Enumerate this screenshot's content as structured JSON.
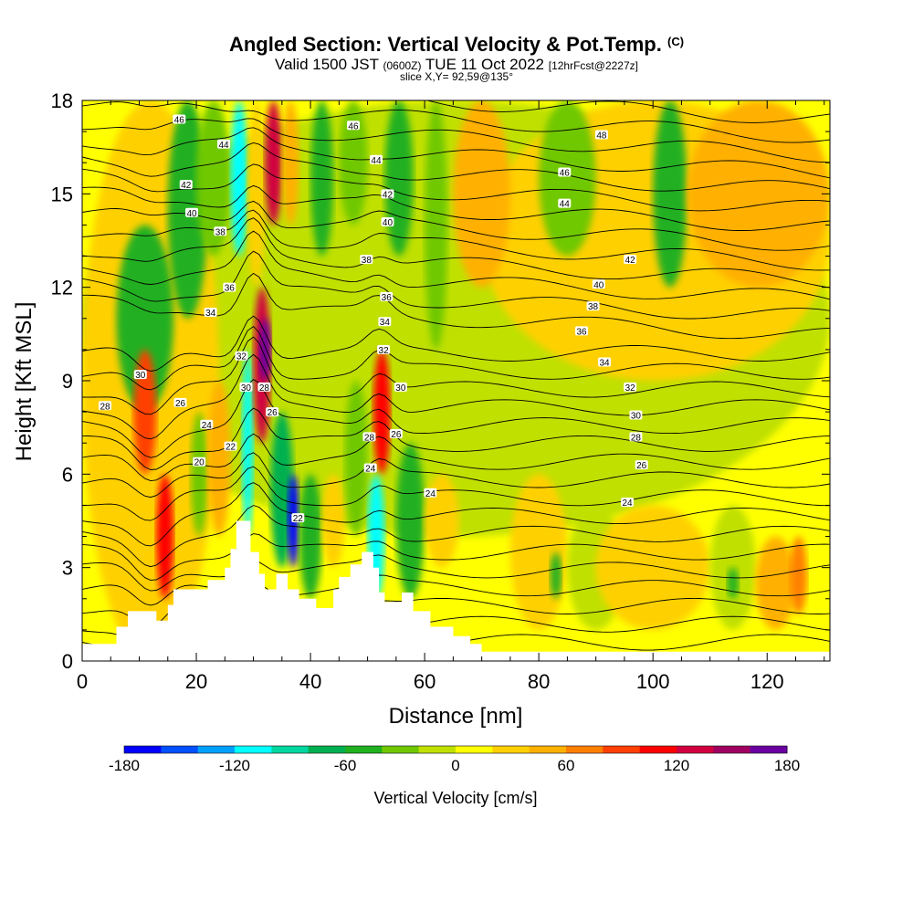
{
  "title": {
    "main": "Angled Section: Vertical Velocity & Pot.Temp.",
    "main_note": "(C)",
    "valid_a": "Valid 1500 JST",
    "valid_zulu": "(0600Z)",
    "valid_b": "TUE 11 Oct 2022",
    "forecast": "[12hrFcst@2227z]",
    "slice": "slice X,Y= 92,59@135°"
  },
  "chart_data": {
    "type": "heatmap",
    "xlabel": "Distance [nm]",
    "ylabel": "Height [Kft MSL]",
    "xlim": [
      0,
      131
    ],
    "ylim": [
      0,
      18
    ],
    "x_ticks": [
      "0",
      "20",
      "40",
      "60",
      "80",
      "100",
      "120"
    ],
    "y_ticks": [
      "0",
      "3",
      "6",
      "9",
      "12",
      "15",
      "18"
    ],
    "colorbar": {
      "label": "Vertical Velocity [cm/s]",
      "ticks": [
        "-180",
        "-120",
        "-60",
        "0",
        "60",
        "120",
        "180"
      ],
      "range": [
        -180,
        180
      ],
      "colors": [
        "#0000ff",
        "#0050ff",
        "#00a0ff",
        "#00ffff",
        "#00d6a0",
        "#00b050",
        "#20b020",
        "#70c800",
        "#c0e000",
        "#ffff00",
        "#ffd000",
        "#ffb000",
        "#ff8000",
        "#ff4000",
        "#ff0000",
        "#d00040",
        "#a00060",
        "#6a00a0"
      ]
    },
    "terrain": [
      [
        0,
        0.55
      ],
      [
        6,
        0.55
      ],
      [
        6,
        1.1
      ],
      [
        8,
        1.1
      ],
      [
        8,
        1.6
      ],
      [
        13,
        1.6
      ],
      [
        13,
        1.3
      ],
      [
        15,
        1.3
      ],
      [
        15,
        1.8
      ],
      [
        16,
        1.8
      ],
      [
        16,
        2.3
      ],
      [
        22,
        2.3
      ],
      [
        22,
        2.6
      ],
      [
        25,
        2.6
      ],
      [
        25,
        3.0
      ],
      [
        26,
        3.0
      ],
      [
        26,
        3.6
      ],
      [
        27,
        3.6
      ],
      [
        27,
        4.5
      ],
      [
        29.5,
        4.5
      ],
      [
        29.5,
        3.5
      ],
      [
        31,
        3.5
      ],
      [
        31,
        2.8
      ],
      [
        32,
        2.8
      ],
      [
        32,
        2.3
      ],
      [
        34,
        2.3
      ],
      [
        34,
        2.8
      ],
      [
        36,
        2.8
      ],
      [
        36,
        2.3
      ],
      [
        38,
        2.3
      ],
      [
        38,
        2.0
      ],
      [
        41,
        2.0
      ],
      [
        41,
        1.7
      ],
      [
        44,
        1.7
      ],
      [
        44,
        2.3
      ],
      [
        45,
        2.3
      ],
      [
        45,
        2.7
      ],
      [
        47,
        2.7
      ],
      [
        47,
        3.1
      ],
      [
        49,
        3.1
      ],
      [
        49,
        3.5
      ],
      [
        51,
        3.5
      ],
      [
        51,
        3.0
      ],
      [
        52,
        3.0
      ],
      [
        52,
        2.2
      ],
      [
        53,
        2.2
      ],
      [
        53,
        1.9
      ],
      [
        56,
        1.9
      ],
      [
        56,
        2.2
      ],
      [
        58,
        2.2
      ],
      [
        58,
        1.6
      ],
      [
        61,
        1.6
      ],
      [
        61,
        1.1
      ],
      [
        65,
        1.1
      ],
      [
        65,
        0.8
      ],
      [
        68,
        0.8
      ],
      [
        68,
        0.55
      ],
      [
        70,
        0.55
      ],
      [
        70,
        0.3
      ],
      [
        131,
        0.3
      ]
    ],
    "theta_labels": [
      {
        "text": "46",
        "x": 17,
        "y": 17.4
      },
      {
        "text": "44",
        "x": 24.8,
        "y": 16.6
      },
      {
        "text": "42",
        "x": 18.2,
        "y": 15.3
      },
      {
        "text": "40",
        "x": 19.2,
        "y": 14.4
      },
      {
        "text": "38",
        "x": 24.2,
        "y": 13.8
      },
      {
        "text": "36",
        "x": 25.8,
        "y": 12.0
      },
      {
        "text": "34",
        "x": 22.5,
        "y": 11.2
      },
      {
        "text": "32",
        "x": 27.9,
        "y": 9.8
      },
      {
        "text": "30",
        "x": 10.2,
        "y": 9.2
      },
      {
        "text": "30",
        "x": 28.7,
        "y": 8.8
      },
      {
        "text": "28",
        "x": 31.9,
        "y": 8.8
      },
      {
        "text": "28",
        "x": 4,
        "y": 8.2
      },
      {
        "text": "26",
        "x": 17.2,
        "y": 8.3
      },
      {
        "text": "26",
        "x": 33.3,
        "y": 8.0
      },
      {
        "text": "24",
        "x": 21.8,
        "y": 7.6
      },
      {
        "text": "22",
        "x": 26,
        "y": 6.9
      },
      {
        "text": "20",
        "x": 20.5,
        "y": 6.4
      },
      {
        "text": "22",
        "x": 37.8,
        "y": 4.6
      },
      {
        "text": "46",
        "x": 47.5,
        "y": 17.2
      },
      {
        "text": "44",
        "x": 51.5,
        "y": 16.1
      },
      {
        "text": "42",
        "x": 53.5,
        "y": 15.0
      },
      {
        "text": "40",
        "x": 53.5,
        "y": 14.1
      },
      {
        "text": "38",
        "x": 49.8,
        "y": 12.9
      },
      {
        "text": "36",
        "x": 53.3,
        "y": 11.7
      },
      {
        "text": "34",
        "x": 53,
        "y": 10.9
      },
      {
        "text": "32",
        "x": 52.8,
        "y": 10.0
      },
      {
        "text": "30",
        "x": 55.8,
        "y": 8.8
      },
      {
        "text": "28",
        "x": 50.3,
        "y": 7.2
      },
      {
        "text": "26",
        "x": 55,
        "y": 7.3
      },
      {
        "text": "24",
        "x": 50.5,
        "y": 6.2
      },
      {
        "text": "24",
        "x": 61,
        "y": 5.4
      },
      {
        "text": "48",
        "x": 91,
        "y": 16.9
      },
      {
        "text": "46",
        "x": 84.5,
        "y": 15.7
      },
      {
        "text": "44",
        "x": 84.5,
        "y": 14.7
      },
      {
        "text": "42",
        "x": 96,
        "y": 12.9
      },
      {
        "text": "40",
        "x": 90.5,
        "y": 12.1
      },
      {
        "text": "38",
        "x": 89.5,
        "y": 11.4
      },
      {
        "text": "36",
        "x": 87.5,
        "y": 10.6
      },
      {
        "text": "34",
        "x": 91.5,
        "y": 9.6
      },
      {
        "text": "32",
        "x": 96,
        "y": 8.8
      },
      {
        "text": "30",
        "x": 97,
        "y": 7.9
      },
      {
        "text": "28",
        "x": 97,
        "y": 7.2
      },
      {
        "text": "26",
        "x": 98,
        "y": 6.3
      },
      {
        "text": "24",
        "x": 95.5,
        "y": 5.1
      }
    ]
  }
}
